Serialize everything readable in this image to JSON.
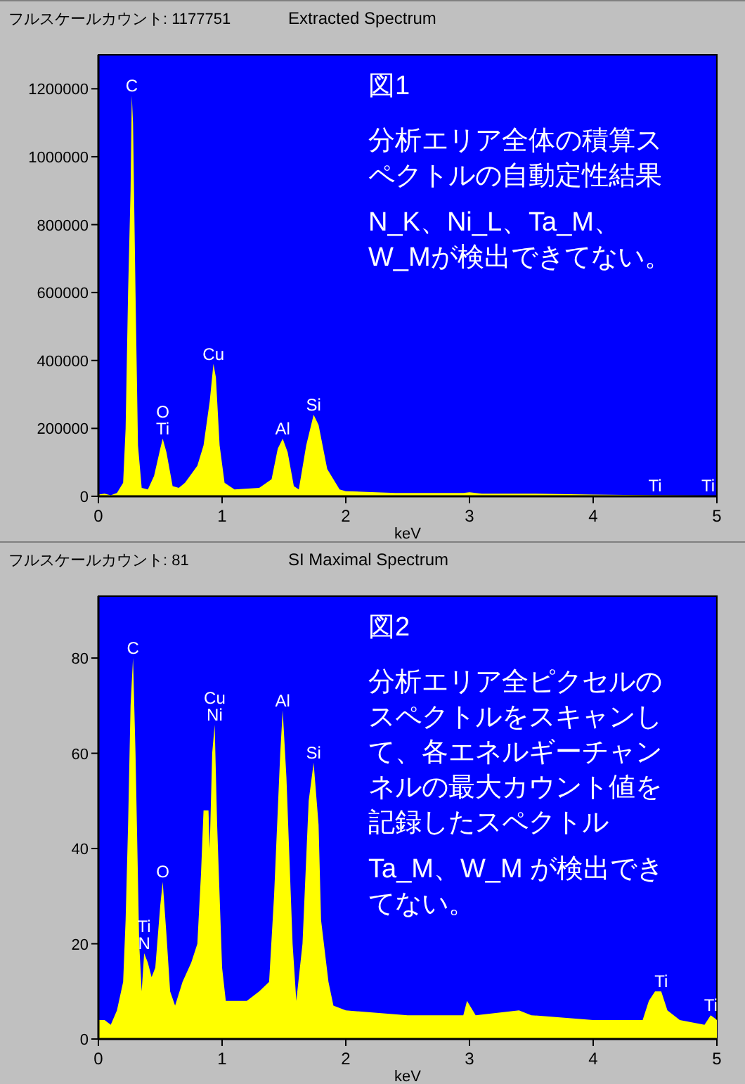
{
  "chart_data": [
    {
      "type": "area",
      "subtitle": "フルスケールカウント: 1177751",
      "title": "Extracted Spectrum",
      "xlabel": "keV",
      "xlim": [
        0,
        5
      ],
      "xticks": [
        0,
        1,
        2,
        3,
        4,
        5
      ],
      "ylim": [
        0,
        1300000
      ],
      "yticks": [
        0,
        200000,
        400000,
        600000,
        800000,
        1000000,
        1200000
      ],
      "x": [
        0,
        0.05,
        0.1,
        0.15,
        0.2,
        0.22,
        0.24,
        0.26,
        0.27,
        0.28,
        0.3,
        0.32,
        0.35,
        0.4,
        0.45,
        0.5,
        0.52,
        0.55,
        0.6,
        0.65,
        0.7,
        0.8,
        0.85,
        0.9,
        0.93,
        0.95,
        0.98,
        1.02,
        1.1,
        1.3,
        1.4,
        1.45,
        1.49,
        1.53,
        1.58,
        1.62,
        1.68,
        1.74,
        1.78,
        1.85,
        1.95,
        2.0,
        2.4,
        2.95,
        3.0,
        3.1,
        3.5,
        4.0,
        4.5,
        4.93,
        5.0
      ],
      "series": [
        {
          "color": "#ffff00",
          "values": [
            5000,
            8000,
            3000,
            10000,
            40000,
            200000,
            600000,
            900000,
            1180000,
            1100000,
            600000,
            150000,
            25000,
            20000,
            60000,
            140000,
            170000,
            130000,
            30000,
            25000,
            40000,
            90000,
            150000,
            280000,
            390000,
            350000,
            150000,
            40000,
            20000,
            25000,
            50000,
            140000,
            170000,
            130000,
            30000,
            20000,
            150000,
            240000,
            210000,
            80000,
            20000,
            15000,
            10000,
            10000,
            12000,
            8000,
            8000,
            5000,
            3000,
            2000,
            2000
          ]
        }
      ],
      "annotations": [
        {
          "text": "C",
          "x": 0.27,
          "y": 1180000
        },
        {
          "text": "Ti",
          "x": 0.52,
          "y": 170000
        },
        {
          "text": "O",
          "x": 0.52,
          "y": 170000
        },
        {
          "text": "Cu",
          "x": 0.93,
          "y": 390000
        },
        {
          "text": "Al",
          "x": 1.49,
          "y": 170000
        },
        {
          "text": "Si",
          "x": 1.74,
          "y": 240000
        },
        {
          "text": "Ti",
          "x": 4.5,
          "y": 3000
        },
        {
          "text": "Ti",
          "x": 4.93,
          "y": 2000
        },
        "図1",
        "分析エリア全体の積算スペクトルの自動定性結果",
        "N_K、Ni_L、Ta_M、W_Mが検出できてない。"
      ]
    },
    {
      "type": "area",
      "subtitle": "フルスケールカウント: 81",
      "title": "SI Maximal Spectrum",
      "xlabel": "keV",
      "xlim": [
        0,
        5
      ],
      "xticks": [
        0,
        1,
        2,
        3,
        4,
        5
      ],
      "ylim": [
        0,
        93
      ],
      "yticks": [
        0,
        20,
        40,
        60,
        80
      ],
      "x": [
        0,
        0.05,
        0.1,
        0.15,
        0.2,
        0.22,
        0.24,
        0.26,
        0.28,
        0.3,
        0.33,
        0.35,
        0.37,
        0.4,
        0.43,
        0.46,
        0.5,
        0.52,
        0.55,
        0.58,
        0.62,
        0.68,
        0.75,
        0.8,
        0.83,
        0.85,
        0.89,
        0.9,
        0.92,
        0.94,
        0.96,
        1.0,
        1.03,
        1.2,
        1.3,
        1.38,
        1.42,
        1.47,
        1.49,
        1.52,
        1.57,
        1.6,
        1.65,
        1.7,
        1.74,
        1.78,
        1.8,
        1.86,
        1.9,
        2.0,
        2.5,
        2.95,
        2.98,
        3.05,
        3.4,
        3.5,
        4.0,
        4.4,
        4.45,
        4.5,
        4.55,
        4.6,
        4.7,
        4.9,
        4.95,
        5.0
      ],
      "series": [
        {
          "color": "#ffff00",
          "values": [
            4,
            4,
            3,
            6,
            12,
            25,
            45,
            70,
            80,
            60,
            20,
            10,
            18,
            16,
            13,
            15,
            28,
            33,
            22,
            10,
            7,
            12,
            16,
            20,
            35,
            48,
            48,
            40,
            60,
            66,
            45,
            15,
            8,
            8,
            10,
            12,
            30,
            60,
            69,
            55,
            20,
            8,
            20,
            50,
            58,
            45,
            25,
            12,
            7,
            6,
            5,
            5,
            8,
            5,
            6,
            5,
            4,
            4,
            8,
            10,
            10,
            6,
            4,
            3,
            5,
            4
          ]
        }
      ],
      "annotations": [
        {
          "text": "C",
          "x": 0.28,
          "y": 80
        },
        {
          "text": "N",
          "x": 0.37,
          "y": 18
        },
        {
          "text": "Ti",
          "x": 0.37,
          "y": 18
        },
        {
          "text": "O",
          "x": 0.52,
          "y": 33
        },
        {
          "text": "Ni",
          "x": 0.94,
          "y": 66
        },
        {
          "text": "Cu",
          "x": 0.94,
          "y": 66
        },
        {
          "text": "Al",
          "x": 1.49,
          "y": 69
        },
        {
          "text": "Si",
          "x": 1.74,
          "y": 58
        },
        {
          "text": "Ti",
          "x": 4.55,
          "y": 10
        },
        {
          "text": "Ti",
          "x": 4.95,
          "y": 5
        },
        "図2",
        "分析エリア全ピクセルのスペクトルをスキャンして、各エネルギーチャンネルの最大カウント値を記録したスペクトル",
        "Ta_M、W_M が検出できてない。"
      ]
    }
  ]
}
